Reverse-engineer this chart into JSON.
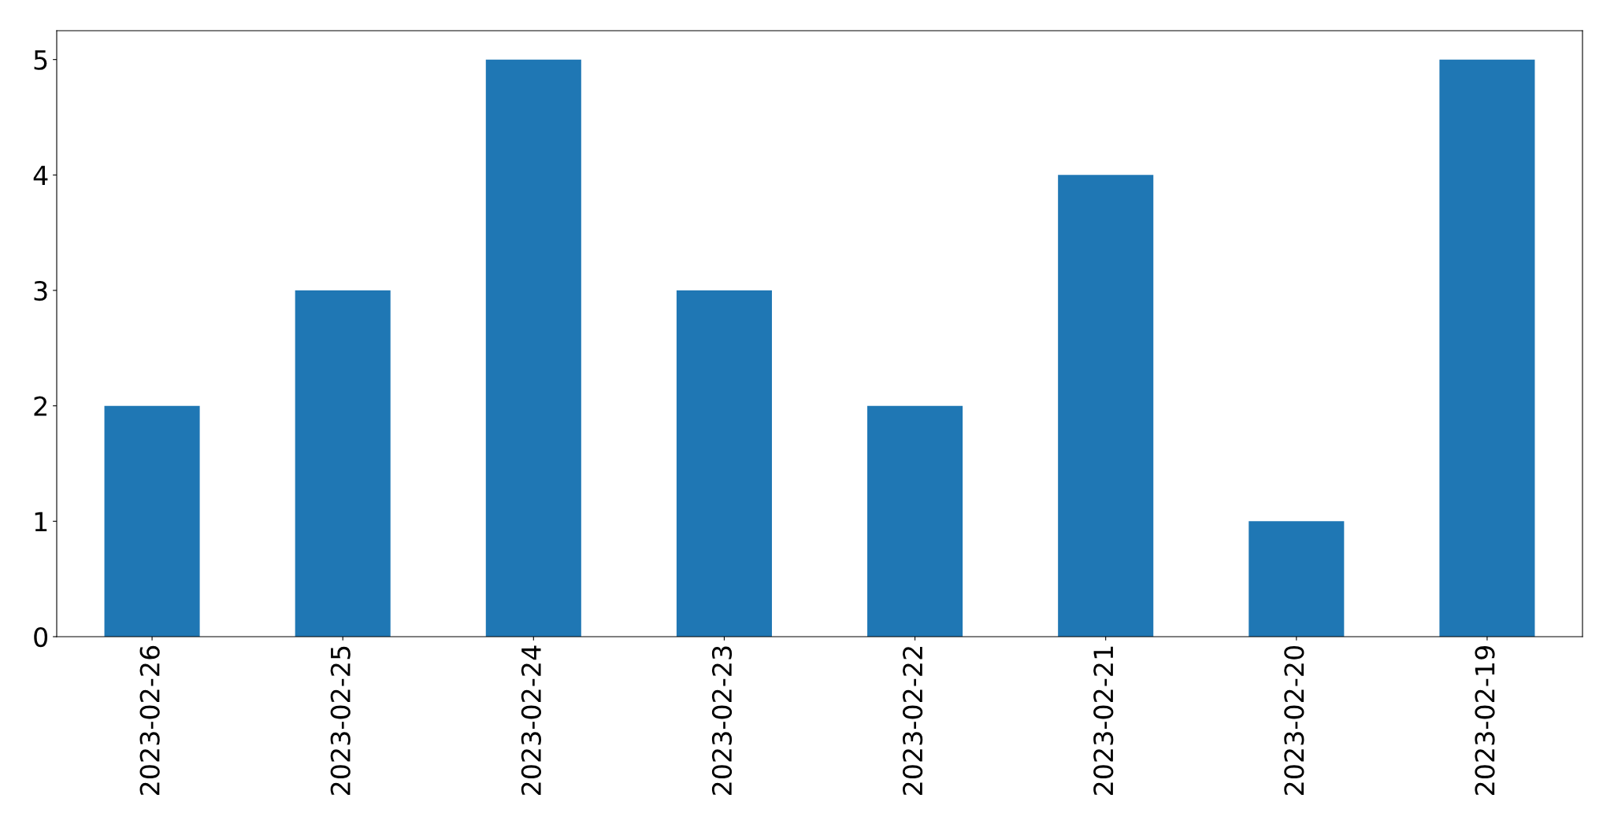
{
  "chart_data": {
    "type": "bar",
    "categories": [
      "2023-02-26",
      "2023-02-25",
      "2023-02-24",
      "2023-02-23",
      "2023-02-22",
      "2023-02-21",
      "2023-02-20",
      "2023-02-19"
    ],
    "values": [
      2,
      3,
      5,
      3,
      2,
      4,
      1,
      5
    ],
    "color": "#1f77b4",
    "ylim": [
      0,
      5.25
    ],
    "yticks": [
      0,
      1,
      2,
      3,
      4,
      5
    ],
    "grid": false,
    "legend": false
  }
}
